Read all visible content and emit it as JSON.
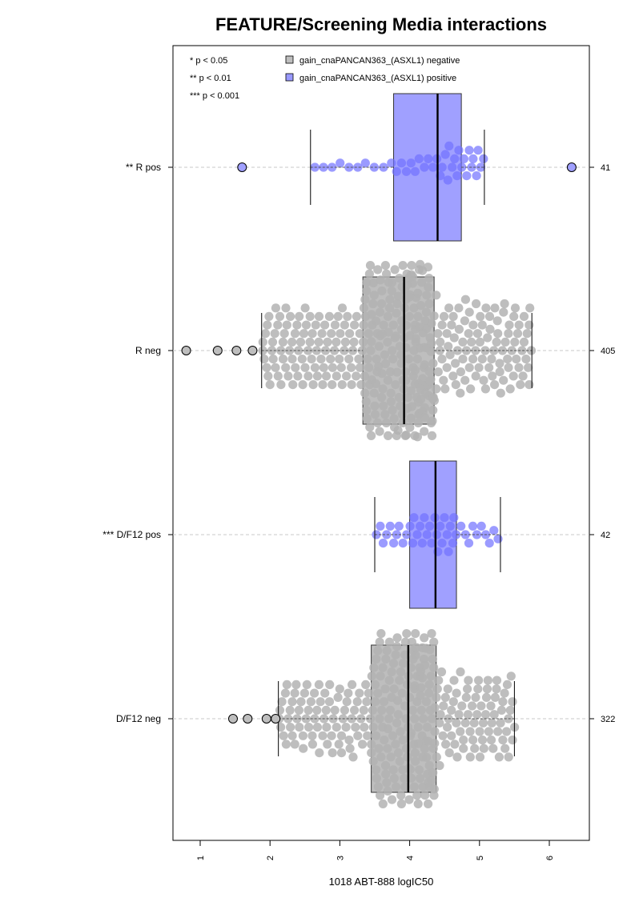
{
  "chart_data": {
    "type": "box",
    "title": "FEATURE/Screening Media interactions",
    "xlabel": "1018 ABT-888 logIC50",
    "ylabel": "",
    "xlim": [
      0.25,
      6.55
    ],
    "x_ticks": [
      1,
      2,
      3,
      4,
      5,
      6
    ],
    "x_tick_labels": [
      "1",
      "2",
      "3",
      "4",
      "5",
      "6"
    ],
    "grid": false,
    "legend_position": "top",
    "significance_key": [
      "* p < 0.05",
      "** p < 0.01",
      "*** p < 0.001"
    ],
    "legend": [
      {
        "label": "gain_cnaPANCAN363_(ASXL1) negative",
        "color": "#bebebe"
      },
      {
        "label": "gain_cnaPANCAN363_(ASXL1) positive",
        "color": "#9999ff"
      }
    ],
    "colors": {
      "negative_box": "#bebebe",
      "negative_point": "#b3b3b3",
      "positive_box": "#a0a0ff",
      "positive_point": "#7070ff"
    },
    "groups": [
      {
        "label": "** R pos",
        "status": "positive",
        "n": "41",
        "whisker_low": 2.58,
        "q1": 3.77,
        "median": 4.4,
        "q3": 4.74,
        "whisker_high": 5.07,
        "outliers": [
          1.6,
          6.32
        ]
      },
      {
        "label": "R neg",
        "status": "negative",
        "n": "405",
        "whisker_low": 1.88,
        "q1": 3.33,
        "median": 3.92,
        "q3": 4.35,
        "whisker_high": 5.75,
        "outliers": [
          0.8,
          1.25,
          1.52,
          1.75
        ]
      },
      {
        "label": "*** D/F12 pos",
        "status": "positive",
        "n": "42",
        "whisker_low": 3.5,
        "q1": 4.0,
        "median": 4.37,
        "q3": 4.67,
        "whisker_high": 5.3,
        "outliers": []
      },
      {
        "label": "D/F12 neg",
        "status": "negative",
        "n": "322",
        "whisker_low": 2.12,
        "q1": 3.45,
        "median": 3.98,
        "q3": 4.38,
        "whisker_high": 5.5,
        "outliers": [
          1.47,
          1.68,
          1.95,
          2.08
        ]
      }
    ]
  }
}
